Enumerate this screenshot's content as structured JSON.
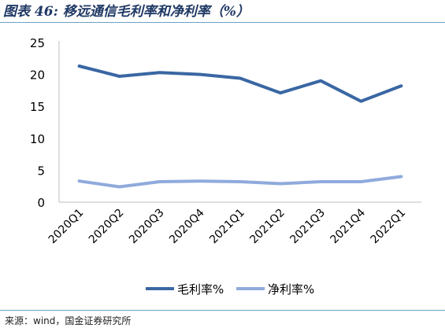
{
  "header": {
    "title": "图表 46: 移远通信毛利率和净利率（%）"
  },
  "footer": {
    "source": "来源：wind，国金证券研究所"
  },
  "colors": {
    "rule": "#6aa3c9",
    "axis": "#bfbfbf"
  },
  "chart_data": {
    "type": "line",
    "categories": [
      "2020Q1",
      "2020Q2",
      "2020Q3",
      "2020Q4",
      "2021Q1",
      "2021Q2",
      "2021Q3",
      "2021Q4",
      "2022Q1"
    ],
    "series": [
      {
        "name": "毛利率%",
        "color": "#3a67a3",
        "values": [
          21.3,
          19.7,
          20.3,
          20.0,
          19.4,
          17.1,
          19.0,
          15.8,
          18.2
        ]
      },
      {
        "name": "净利率%",
        "color": "#8faadc",
        "values": [
          3.3,
          2.4,
          3.2,
          3.3,
          3.2,
          2.9,
          3.2,
          3.2,
          4.0
        ]
      }
    ],
    "yticks": [
      0,
      5,
      10,
      15,
      20,
      25
    ],
    "ylim": [
      0,
      25
    ],
    "legend_position": "bottom",
    "grid": false
  }
}
